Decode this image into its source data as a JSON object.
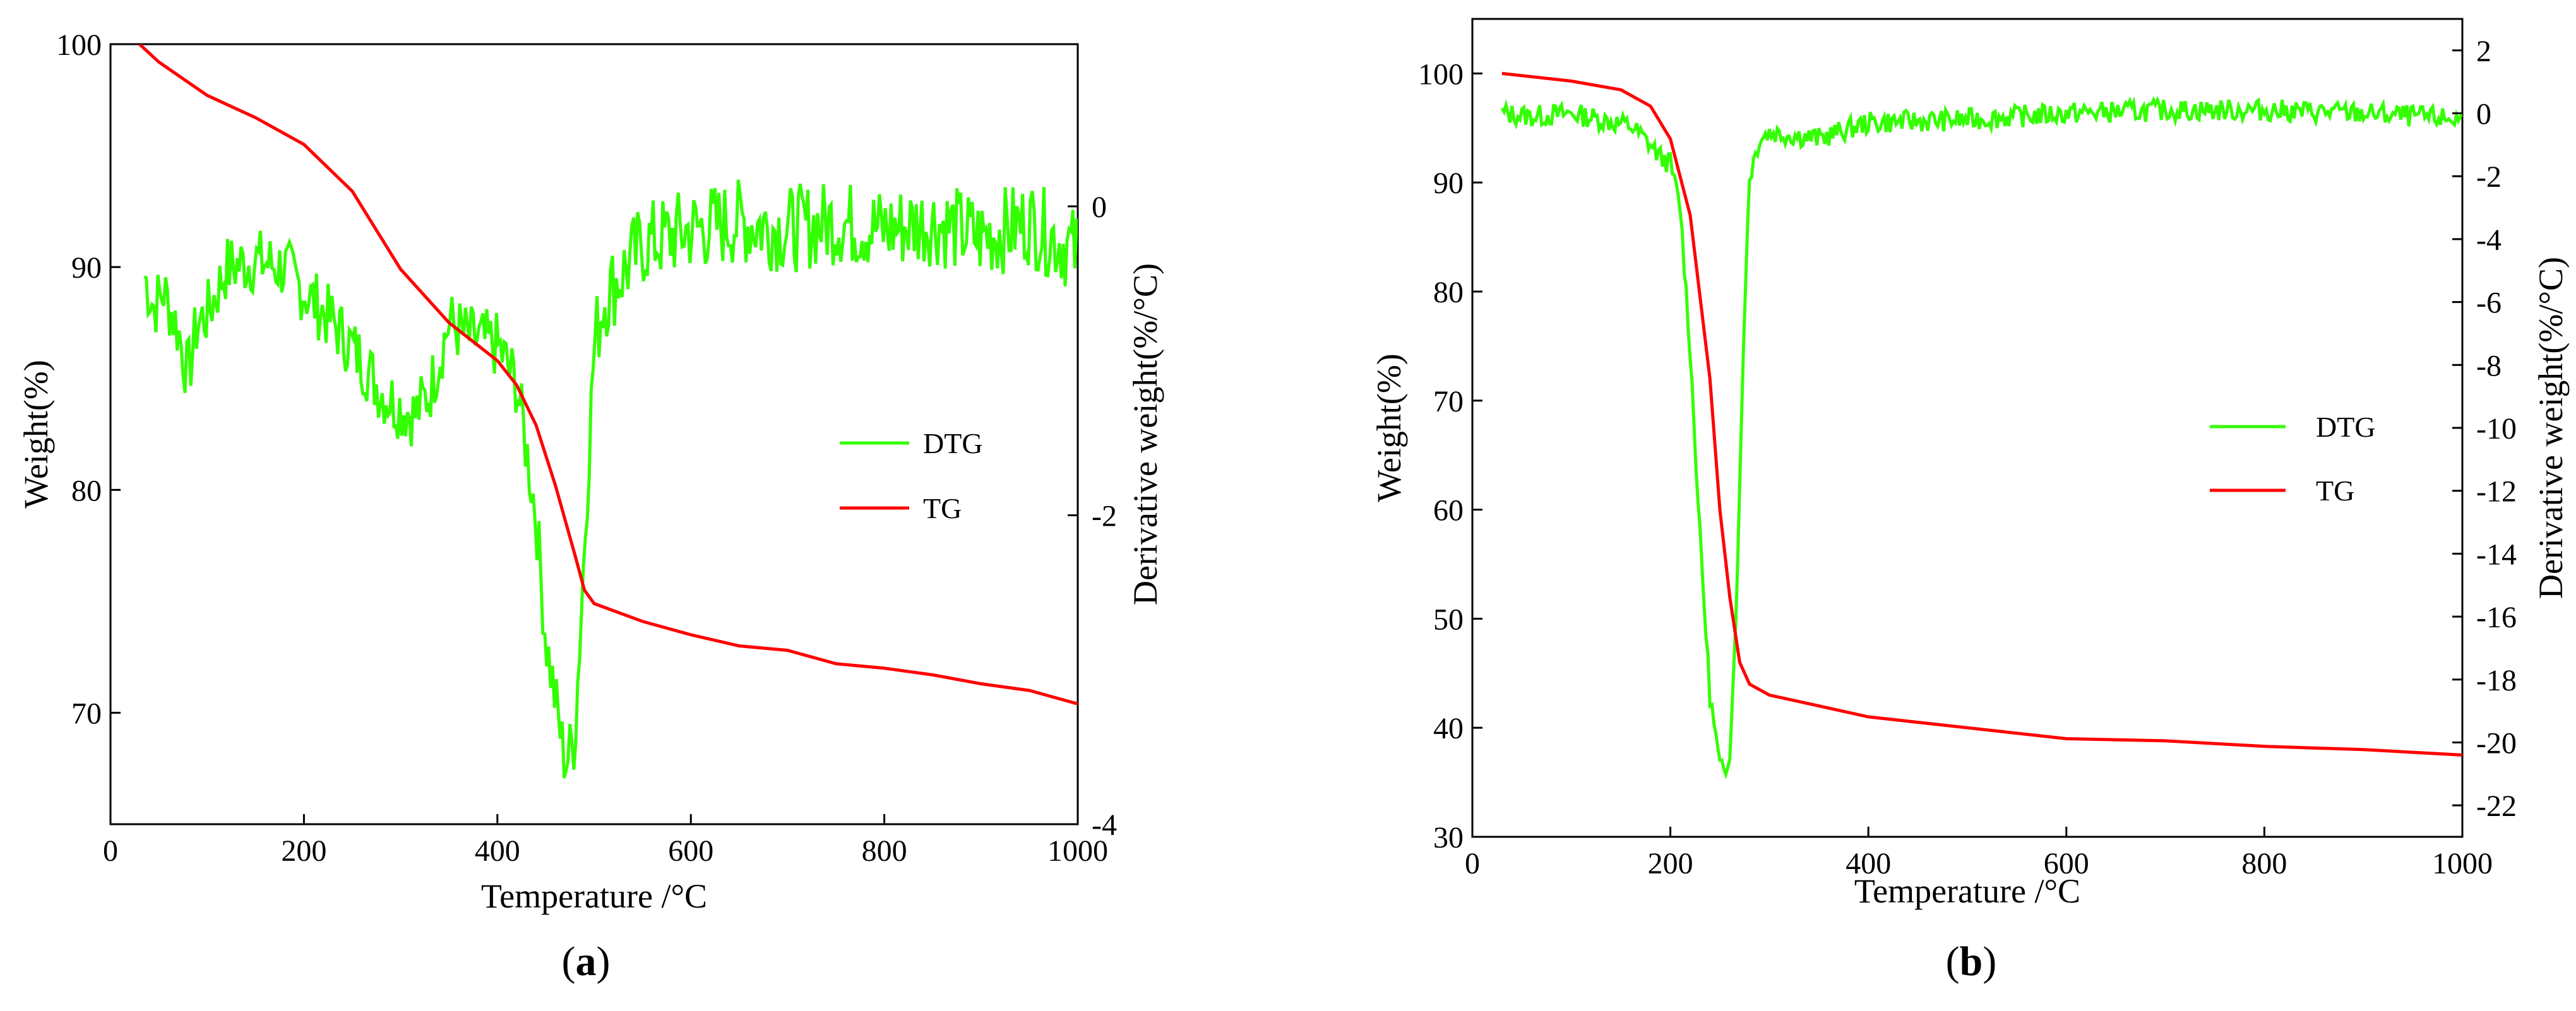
{
  "chart_data": [
    {
      "type": "line",
      "caption": "(a)",
      "caption_letter": "a",
      "xlabel": "Temperature /°C",
      "ylabel": "Weight(%)",
      "y2label": "Derivative weight(%/°C)",
      "xlim": [
        0,
        1000
      ],
      "ylim": [
        65,
        100
      ],
      "y2lim": [
        -4,
        1.05
      ],
      "xticks": [
        0,
        200,
        400,
        600,
        800,
        1000
      ],
      "yticks": [
        70,
        80,
        90,
        100
      ],
      "y2ticks": [
        0,
        -2,
        -4
      ],
      "legend": [
        "DTG",
        "TG"
      ],
      "legend_position": "right-middle",
      "colors": {
        "DTG": "#33ff00",
        "TG": "#ff0000"
      },
      "series": [
        {
          "name": "TG",
          "axis": "left",
          "x": [
            30,
            50,
            100,
            150,
            200,
            250,
            300,
            350,
            400,
            420,
            440,
            460,
            480,
            490,
            500,
            550,
            600,
            650,
            700,
            750,
            800,
            850,
            900,
            950,
            1000
          ],
          "values": [
            100,
            99.2,
            97.7,
            96.7,
            95.5,
            93.4,
            89.9,
            87.5,
            85.8,
            84.7,
            82.9,
            80.2,
            77.1,
            75.5,
            74.9,
            74.1,
            73.5,
            73.0,
            72.8,
            72.2,
            72.0,
            71.7,
            71.3,
            71.0,
            70.4
          ]
        },
        {
          "name": "DTG",
          "axis": "right",
          "x": [
            35,
            45,
            55,
            70,
            80,
            90,
            100,
            120,
            150,
            180,
            200,
            230,
            260,
            280,
            300,
            315,
            330,
            350,
            370,
            400,
            420,
            440,
            450,
            460,
            470,
            480,
            490,
            500,
            510,
            550,
            600,
            650,
            700,
            750,
            800,
            850,
            900,
            950,
            1000
          ],
          "values": [
            -0.45,
            -0.65,
            -0.55,
            -0.8,
            -1.1,
            -0.75,
            -0.7,
            -0.4,
            -0.35,
            -0.4,
            -0.55,
            -0.75,
            -1.0,
            -1.2,
            -1.3,
            -1.35,
            -1.2,
            -0.75,
            -0.85,
            -0.9,
            -1.15,
            -2.0,
            -2.8,
            -3.2,
            -3.6,
            -3.45,
            -2.2,
            -0.9,
            -0.6,
            -0.25,
            -0.15,
            -0.1,
            -0.15,
            -0.1,
            -0.15,
            -0.1,
            -0.2,
            -0.1,
            -0.3
          ]
        }
      ]
    },
    {
      "type": "line",
      "caption": "(b)",
      "caption_letter": "b",
      "xlabel": "Temperature /°C",
      "ylabel": "Weight(%)",
      "y2label": "Derivative weight(%/°C)",
      "xlim": [
        0,
        1000
      ],
      "ylim": [
        30,
        105
      ],
      "y2lim": [
        -23,
        3
      ],
      "xticks": [
        0,
        200,
        400,
        600,
        800,
        1000
      ],
      "yticks": [
        30,
        40,
        50,
        60,
        70,
        80,
        90,
        100
      ],
      "y2ticks": [
        2,
        0,
        -2,
        -4,
        -6,
        -8,
        -10,
        -12,
        -14,
        -16,
        -18,
        -20,
        -22
      ],
      "legend": [
        "DTG",
        "TG"
      ],
      "legend_position": "right-middle",
      "colors": {
        "DTG": "#33ff00",
        "TG": "#ff0000"
      },
      "series": [
        {
          "name": "TG",
          "axis": "left",
          "x": [
            30,
            100,
            150,
            180,
            200,
            220,
            240,
            250,
            260,
            270,
            280,
            290,
            300,
            350,
            400,
            500,
            600,
            700,
            800,
            900,
            1000
          ],
          "values": [
            100,
            99.3,
            98.5,
            97,
            94,
            87,
            72,
            60,
            52,
            46,
            44,
            43.5,
            43,
            42,
            41,
            40,
            39,
            38.8,
            38.3,
            38,
            37.5
          ]
        },
        {
          "name": "DTG",
          "axis": "right",
          "x": [
            30,
            60,
            100,
            130,
            160,
            180,
            190,
            200,
            210,
            220,
            230,
            240,
            250,
            255,
            260,
            265,
            270,
            275,
            280,
            290,
            300,
            350,
            400,
            500,
            600,
            700,
            800,
            900,
            1000
          ],
          "values": [
            0,
            -0.1,
            0,
            -0.2,
            -0.4,
            -1.0,
            -1.4,
            -1.6,
            -3.0,
            -7.5,
            -13.5,
            -18.5,
            -20.8,
            -21.0,
            -20.2,
            -17.0,
            -12.0,
            -6.0,
            -2.0,
            -0.8,
            -0.6,
            -0.8,
            -0.3,
            -0.2,
            0,
            0.1,
            0.1,
            0,
            -0.2
          ]
        }
      ]
    }
  ]
}
